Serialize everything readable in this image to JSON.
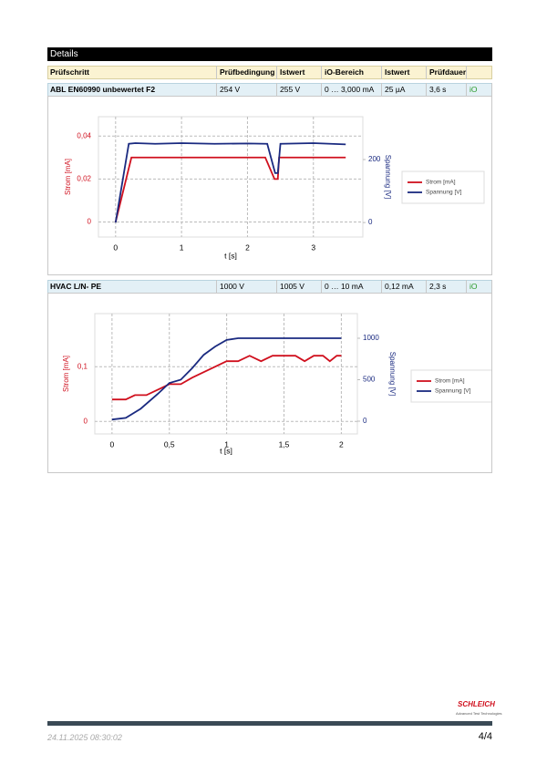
{
  "header": {
    "title": "Details"
  },
  "table": {
    "columns": [
      "Prüfschritt",
      "Prüfbedingung",
      "Istwert",
      "iO-Bereich",
      "Istwert",
      "Prüfdauer"
    ]
  },
  "tests": [
    {
      "row": [
        "ABL EN60990 unbewertet F2",
        "254 V",
        "255 V",
        "0 … 3,000 mA",
        "25 µA",
        "3,6 s",
        "iO"
      ],
      "chart": {
        "type": "line",
        "x_label": "t [s]",
        "y_label": "Strom [mA]",
        "y2_label": "Spannung [V]",
        "grid": true,
        "xlim": [
          -0.26,
          3.75
        ],
        "xticks": [
          0,
          1,
          2,
          3
        ],
        "ylim": [
          -0.007,
          0.049
        ],
        "yticks": [
          0,
          {
            "value": 0.02,
            "label": "0,02"
          },
          {
            "value": 0.04,
            "label": "0,04"
          }
        ],
        "y2lim": [
          -46,
          336
        ],
        "y2ticks": [
          0,
          200
        ],
        "series": [
          {
            "name": "Strom [mA]",
            "color": "#d0101e",
            "x": [
              0,
              0.24,
              2.27,
              2.41,
              2.46,
              2.48,
              3.49
            ],
            "values": [
              0,
              0.03,
              0.03,
              0.02,
              0.02,
              0.03,
              0.03
            ]
          },
          {
            "name": "Spannung [V]",
            "color": "#1a2a80",
            "axis": "y2",
            "x": [
              0,
              0.2,
              0.3,
              0.6,
              1.0,
              1.5,
              2.0,
              2.3,
              2.42,
              2.46,
              2.5,
              3.0,
              3.49
            ],
            "values": [
              0,
              250,
              252,
              250,
              252,
              250,
              251,
              250,
              157,
              157,
              250,
              252,
              248
            ]
          }
        ]
      }
    },
    {
      "row": [
        "HVAC L/N- PE",
        "1000 V",
        "1005 V",
        "0 … 10 mA",
        "0,12 mA",
        "2,3 s",
        "iO"
      ],
      "chart": {
        "type": "line",
        "x_label": "t [s]",
        "y_label": "Strom [mA]",
        "y2_label": "Spannung [V]",
        "grid": true,
        "xlim": [
          -0.15,
          2.14
        ],
        "xticks": [
          0,
          {
            "value": 0.5,
            "label": "0,5"
          },
          1,
          {
            "value": 1.5,
            "label": "1,5"
          },
          2
        ],
        "ylim": [
          -0.023,
          0.197
        ],
        "yticks": [
          0,
          {
            "value": 0.1,
            "label": "0,1"
          }
        ],
        "y2lim": [
          -154,
          1297
        ],
        "y2ticks": [
          0,
          500,
          1000
        ],
        "series": [
          {
            "name": "Strom [mA]",
            "color": "#d0101e",
            "x": [
              0,
              0.12,
              0.2,
              0.3,
              0.4,
              0.5,
              0.6,
              0.7,
              0.8,
              0.9,
              1.0,
              1.1,
              1.2,
              1.3,
              1.4,
              1.5,
              1.6,
              1.68,
              1.76,
              1.84,
              1.9,
              1.96,
              2.0
            ],
            "values": [
              0.04,
              0.04,
              0.048,
              0.048,
              0.058,
              0.068,
              0.068,
              0.08,
              0.09,
              0.1,
              0.11,
              0.11,
              0.12,
              0.11,
              0.12,
              0.12,
              0.12,
              0.11,
              0.12,
              0.12,
              0.11,
              0.12,
              0.12
            ]
          },
          {
            "name": "Spannung [V]",
            "color": "#1a2a80",
            "axis": "y2",
            "x": [
              0,
              0.12,
              0.25,
              0.4,
              0.5,
              0.6,
              0.7,
              0.8,
              0.9,
              1.0,
              1.1,
              1.5,
              2.0
            ],
            "values": [
              20,
              40,
              150,
              330,
              460,
              500,
              640,
              800,
              900,
              980,
              1000,
              1000,
              1000
            ]
          }
        ]
      }
    }
  ],
  "footer": {
    "timestamp": "24.11.2025 08:30:02",
    "page": "4/4",
    "logo": "SCHLEICH",
    "tagline": "Advanced Test Technologies"
  }
}
